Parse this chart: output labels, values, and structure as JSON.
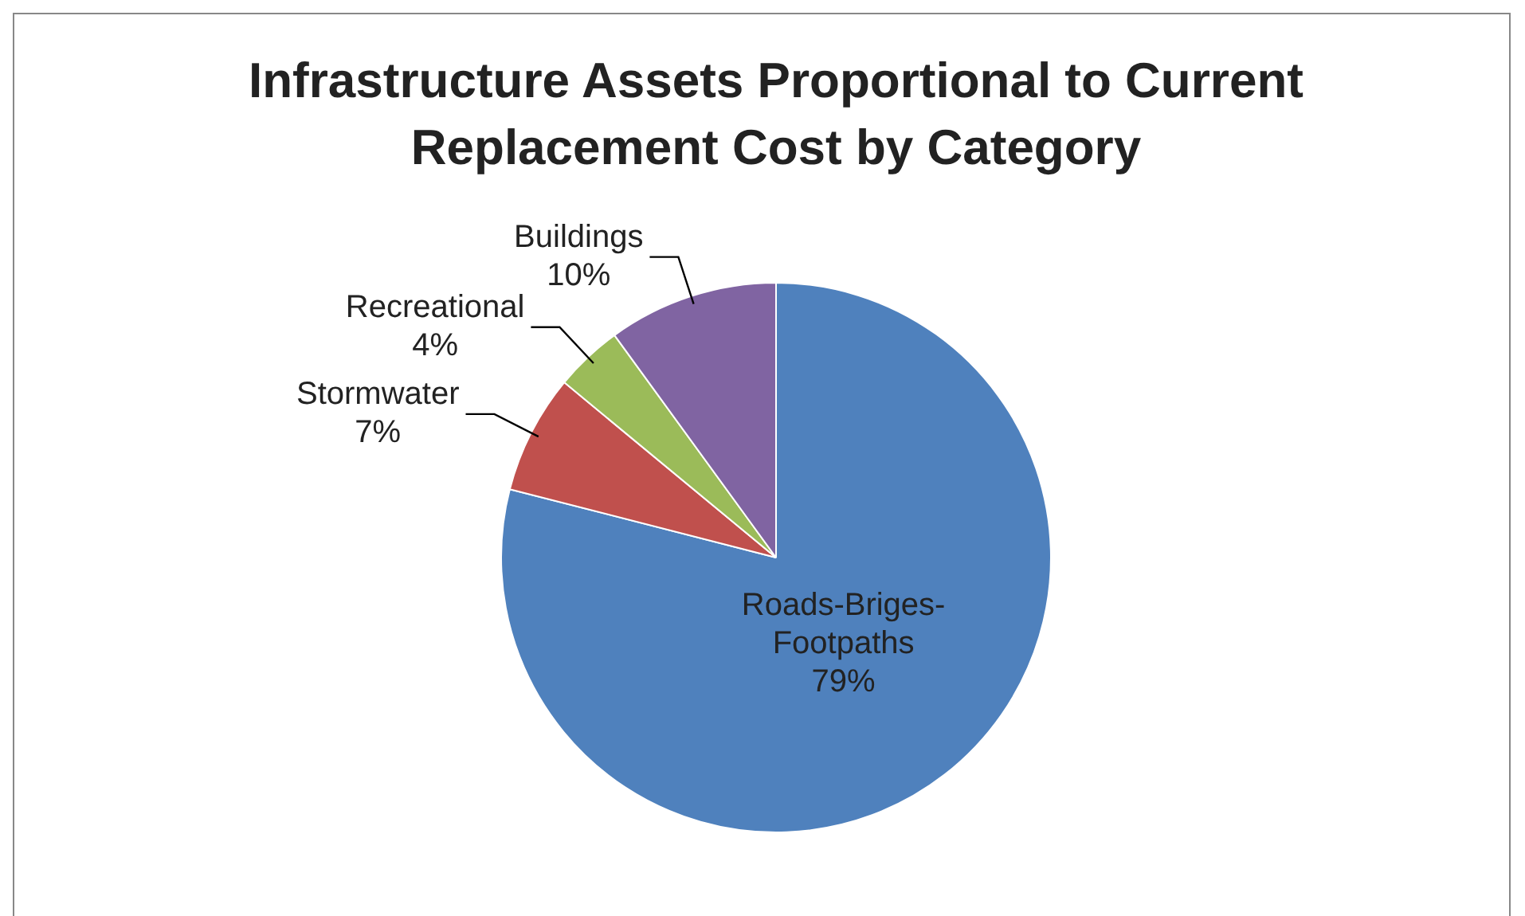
{
  "chart_data": {
    "type": "pie",
    "title": "Infrastructure Assets Proportional to Current Replacement Cost by Category",
    "categories": [
      "Roads-Briges-Footpaths",
      "Stormwater",
      "Recreational",
      "Buildings"
    ],
    "values": [
      79,
      7,
      4,
      10
    ],
    "value_labels": [
      "79%",
      "7%",
      "4%",
      "10%"
    ],
    "colors": [
      "#4f81bd",
      "#c0504d",
      "#9bbb59",
      "#8064a2"
    ],
    "legend": false
  }
}
